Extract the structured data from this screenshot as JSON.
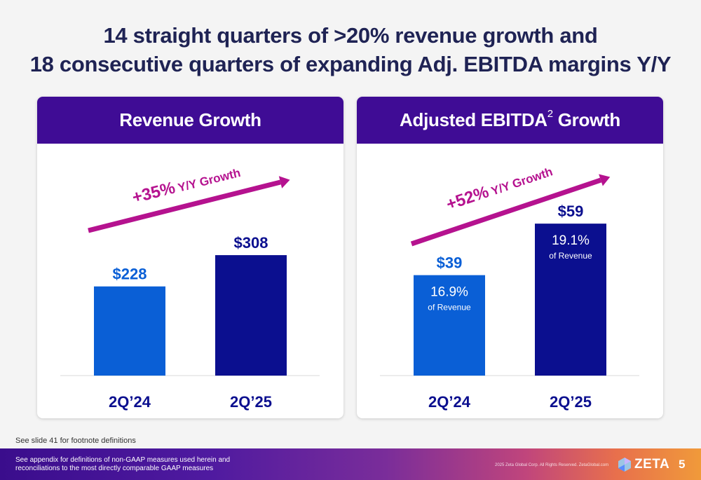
{
  "title": {
    "line1": "14 straight quarters of >20% revenue growth and",
    "line2": "18 consecutive quarters of expanding Adj. EBITDA margins Y/Y"
  },
  "colors": {
    "header_purple": "#3f0c95",
    "bar_light_blue": "#0a5fd6",
    "bar_dark_blue": "#0b0f8f",
    "arrow_magenta": "#b5128f",
    "value_light_blue": "#0a5fd6",
    "value_dark_blue": "#0b0f8f",
    "axis_label": "#0b0f8f"
  },
  "chart_data": [
    {
      "type": "bar",
      "title": "Revenue Growth",
      "categories": [
        "2Q’24",
        "2Q’25"
      ],
      "values": [
        228,
        308
      ],
      "value_labels": [
        "$228",
        "$308"
      ],
      "annotation": {
        "big": "+35%",
        "small": " Y/Y Growth"
      },
      "ylim": [
        0,
        430
      ]
    },
    {
      "type": "bar",
      "title": "Adjusted EBITDA",
      "title_superscript": "2",
      "title_suffix": " Growth",
      "categories": [
        "2Q’24",
        "2Q’25"
      ],
      "values": [
        39,
        59
      ],
      "value_labels": [
        "$39",
        "$59"
      ],
      "margin_labels": [
        "16.9%",
        "19.1%"
      ],
      "margin_sublabel": "of Revenue",
      "annotation": {
        "big": "+52%",
        "small": " Y/Y Growth"
      },
      "ylim": [
        0,
        74
      ]
    }
  ],
  "footnote": "See slide 41 for footnote definitions",
  "footer": {
    "note": "See appendix for definitions of non-GAAP measures used herein and reconciliations to the most directly comparable GAAP measures",
    "copyright": "2025 Zeta Global Corp. All Rights Reserved. ZetaGlobal.com",
    "logo_word": "ZETA",
    "page_number": "5"
  }
}
